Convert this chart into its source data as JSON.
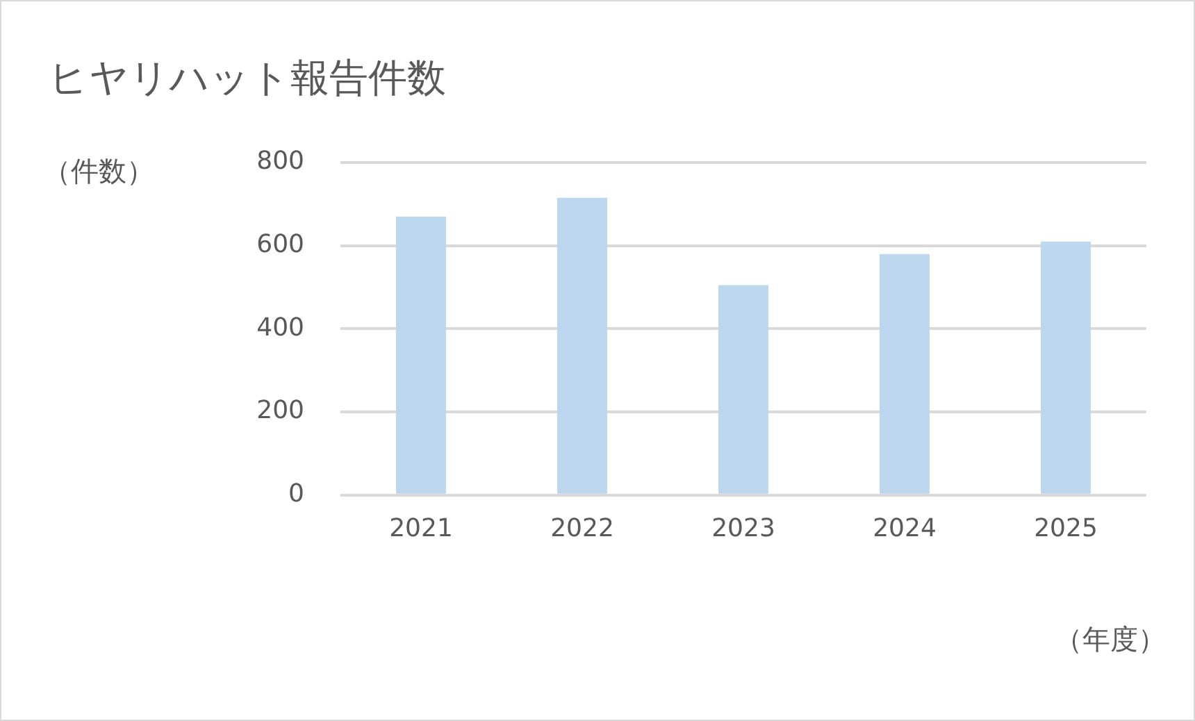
{
  "chart_data": {
    "type": "bar",
    "title": "ヒヤリハット報告件数",
    "ylabel": "（件数）",
    "xlabel": "（年度）",
    "categories": [
      "2021",
      "2022",
      "2023",
      "2024",
      "2025"
    ],
    "values": [
      670,
      715,
      505,
      580,
      610
    ],
    "color": "#bdd7ee",
    "ylim": [
      0,
      800
    ],
    "yticks": [
      0,
      200,
      400,
      600,
      800
    ],
    "grid": "y"
  }
}
